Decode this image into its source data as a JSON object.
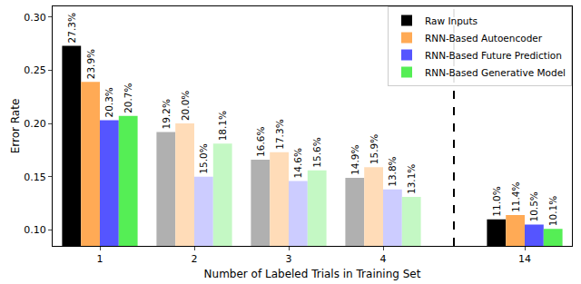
{
  "chart_data": {
    "type": "bar",
    "x_label": "Number of Labeled Trials in Training Set",
    "y_label": "Error Rate",
    "categories": [
      "1",
      "2",
      "3",
      "4",
      "14"
    ],
    "series": [
      {
        "name": "Raw Inputs",
        "color": "#000000",
        "colors": [
          "#000000",
          "#b0b0b0",
          "#b0b0b0",
          "#b0b0b0",
          "#000000"
        ],
        "values": [
          0.273,
          0.192,
          0.166,
          0.149,
          0.11
        ],
        "value_labels": [
          "27.3%",
          "19.2%",
          "16.6%",
          "14.9%",
          "11.0%"
        ]
      },
      {
        "name": "RNN-Based Autoencoder",
        "color": "#ffaa55",
        "colors": [
          "#ffaa55",
          "#ffdcb8",
          "#ffdcb8",
          "#ffdcb8",
          "#ffaa55"
        ],
        "values": [
          0.239,
          0.2,
          0.173,
          0.159,
          0.114
        ],
        "value_labels": [
          "23.9%",
          "20.0%",
          "17.3%",
          "15.9%",
          "11.4%"
        ]
      },
      {
        "name": "RNN-Based Future Prediction",
        "color": "#5555ff",
        "colors": [
          "#5555ff",
          "#ccccff",
          "#ccccff",
          "#ccccff",
          "#5555ff"
        ],
        "values": [
          0.203,
          0.15,
          0.146,
          0.138,
          0.105
        ],
        "value_labels": [
          "20.3%",
          "15.0%",
          "14.6%",
          "13.8%",
          "10.5%"
        ]
      },
      {
        "name": "RNN-Based Generative Model",
        "color": "#55ee55",
        "colors": [
          "#55ee55",
          "#c4f8c4",
          "#c4f8c4",
          "#c4f8c4",
          "#55ee55"
        ],
        "values": [
          0.207,
          0.181,
          0.156,
          0.131,
          0.101
        ],
        "value_labels": [
          "20.7%",
          "18.1%",
          "15.6%",
          "13.1%",
          "10.1%"
        ]
      }
    ],
    "ylim": [
      0.085,
      0.31
    ],
    "yticks": [
      {
        "value": 0.1,
        "label": "0.10"
      },
      {
        "value": 0.15,
        "label": "0.15"
      },
      {
        "value": 0.2,
        "label": "0.20"
      },
      {
        "value": 0.25,
        "label": "0.25"
      },
      {
        "value": 0.3,
        "label": "0.30"
      }
    ],
    "grid": false,
    "legend": "upper right",
    "data_labels": true
  }
}
